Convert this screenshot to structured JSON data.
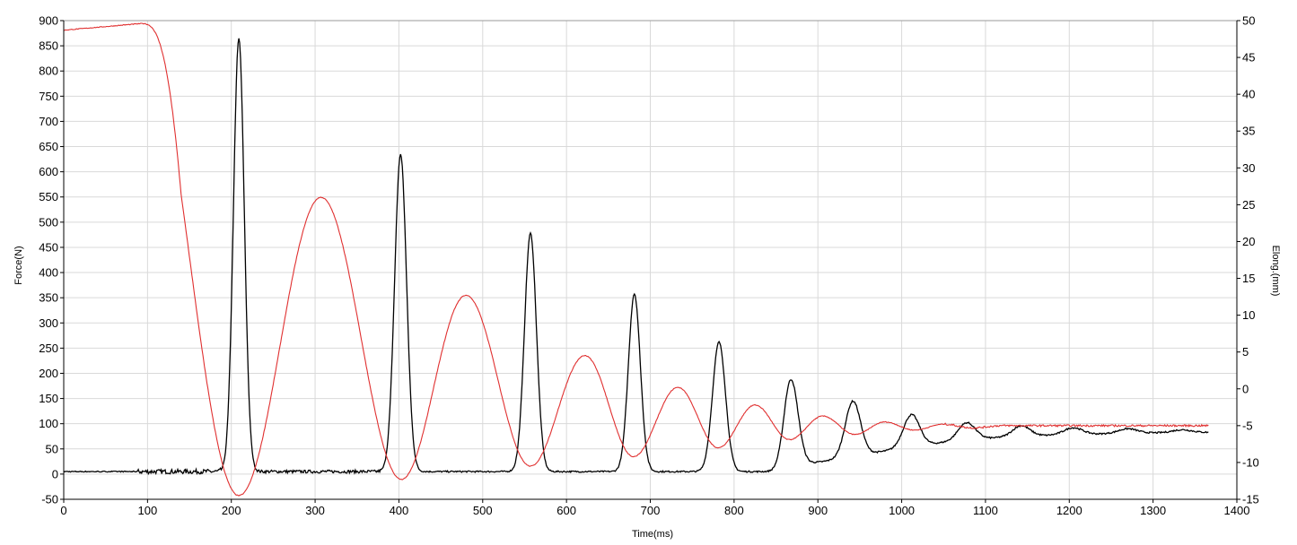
{
  "chart_data": {
    "type": "line",
    "title": "",
    "xlabel": "Time(ms)",
    "ylabel": "Force(N)",
    "y2label": "Elong.(mm)",
    "xlim": [
      0,
      1400
    ],
    "ylim": [
      -50,
      900
    ],
    "y2lim": [
      -15,
      50
    ],
    "x_ticks": [
      0,
      100,
      200,
      300,
      400,
      500,
      600,
      700,
      800,
      900,
      1000,
      1100,
      1200,
      1300,
      1400
    ],
    "y_ticks": [
      -50,
      0,
      50,
      100,
      150,
      200,
      250,
      300,
      350,
      400,
      450,
      500,
      550,
      600,
      650,
      700,
      750,
      800,
      850,
      900
    ],
    "y2_ticks": [
      -15,
      -10,
      -5,
      0,
      5,
      10,
      15,
      20,
      25,
      30,
      35,
      40,
      45,
      50
    ],
    "grid": true,
    "colors": {
      "force": "#000000",
      "elong": "#e03030",
      "grid": "#d9d9d9",
      "axis": "#000000"
    },
    "series": [
      {
        "axis": "left",
        "color": "#000000",
        "baseline_until": 190,
        "baseline_value": 5,
        "peaks": [
          {
            "x": 209,
            "y": 865
          },
          {
            "x": 402,
            "y": 635
          },
          {
            "x": 557,
            "y": 478
          },
          {
            "x": 681,
            "y": 358
          },
          {
            "x": 782,
            "y": 262
          },
          {
            "x": 868,
            "y": 188
          },
          {
            "x": 942,
            "y": 145
          },
          {
            "x": 1012,
            "y": 118
          },
          {
            "x": 1078,
            "y": 102
          },
          {
            "x": 1143,
            "y": 96
          },
          {
            "x": 1205,
            "y": 92
          },
          {
            "x": 1270,
            "y": 90
          },
          {
            "x": 1335,
            "y": 88
          }
        ],
        "troughs": [
          {
            "x": 300,
            "y": 5
          },
          {
            "x": 480,
            "y": 5
          },
          {
            "x": 620,
            "y": 6
          },
          {
            "x": 735,
            "y": 7
          },
          {
            "x": 826,
            "y": 10
          },
          {
            "x": 907,
            "y": 25
          },
          {
            "x": 977,
            "y": 45
          },
          {
            "x": 1045,
            "y": 62
          },
          {
            "x": 1110,
            "y": 72
          },
          {
            "x": 1175,
            "y": 77
          },
          {
            "x": 1240,
            "y": 80
          },
          {
            "x": 1300,
            "y": 82
          },
          {
            "x": 1366,
            "y": 83
          }
        ]
      },
      {
        "axis": "right",
        "color": "#e03030",
        "start_value": 48.7,
        "hold_until": 92,
        "points": [
          {
            "x": 0,
            "y": 48.7
          },
          {
            "x": 92,
            "y": 49.6
          },
          {
            "x": 209,
            "y": -14.5
          },
          {
            "x": 307,
            "y": 26.0
          },
          {
            "x": 403,
            "y": -12.3
          },
          {
            "x": 480,
            "y": 12.7
          },
          {
            "x": 557,
            "y": -10.5
          },
          {
            "x": 622,
            "y": 4.5
          },
          {
            "x": 680,
            "y": -9.2
          },
          {
            "x": 733,
            "y": 0.2
          },
          {
            "x": 781,
            "y": -8.0
          },
          {
            "x": 825,
            "y": -2.2
          },
          {
            "x": 866,
            "y": -6.9
          },
          {
            "x": 906,
            "y": -3.7
          },
          {
            "x": 944,
            "y": -6.2
          },
          {
            "x": 980,
            "y": -4.5
          },
          {
            "x": 1015,
            "y": -5.6
          },
          {
            "x": 1050,
            "y": -4.8
          },
          {
            "x": 1085,
            "y": -5.3
          },
          {
            "x": 1120,
            "y": -5.0
          },
          {
            "x": 1366,
            "y": -5.0
          }
        ]
      }
    ]
  }
}
